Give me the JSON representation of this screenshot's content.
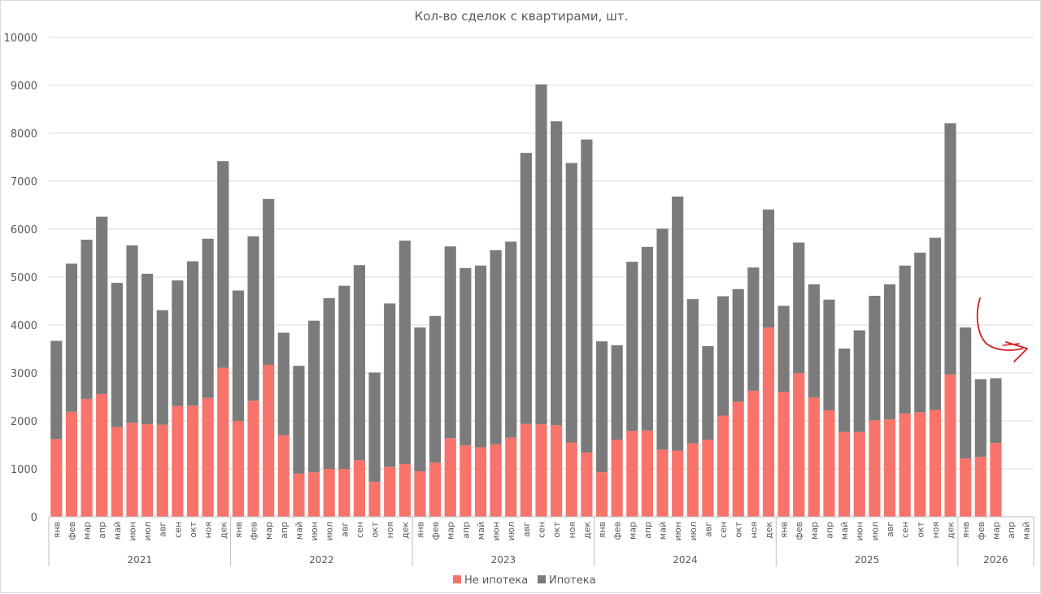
{
  "chart_data": {
    "type": "bar",
    "stacked": true,
    "title": "Кол-во сделок с квартирами, шт.",
    "xlabel": "",
    "ylabel": "",
    "ylim": [
      0,
      10000
    ],
    "yticks": [
      0,
      1000,
      2000,
      3000,
      4000,
      5000,
      6000,
      7000,
      8000,
      9000,
      10000
    ],
    "grid": true,
    "legend_position": "bottom",
    "categories": [
      "янв",
      "фев",
      "мар",
      "апр",
      "май",
      "июн",
      "июл",
      "авг",
      "сен",
      "окт",
      "ноя",
      "дек",
      "янв",
      "фев",
      "мар",
      "апр",
      "май",
      "июн",
      "июл",
      "авг",
      "сен",
      "окт",
      "ноя",
      "дек",
      "янв",
      "фев",
      "мар",
      "апр",
      "май",
      "июн",
      "июл",
      "авг",
      "сен",
      "окт",
      "ноя",
      "дек",
      "янв",
      "фев",
      "мар",
      "апр",
      "май",
      "июн",
      "июл",
      "авг",
      "сен",
      "окт",
      "ноя",
      "дек",
      "янв",
      "фев",
      "мар",
      "апр",
      "май",
      "июн",
      "июл",
      "авг",
      "сен",
      "окт",
      "ноя",
      "дек",
      "янв",
      "фев",
      "мар",
      "апр",
      "май"
    ],
    "years": [
      {
        "label": "2021",
        "start": 0,
        "count": 12
      },
      {
        "label": "2022",
        "start": 12,
        "count": 12
      },
      {
        "label": "2023",
        "start": 24,
        "count": 12
      },
      {
        "label": "2024",
        "start": 36,
        "count": 12
      },
      {
        "label": "2025",
        "start": 48,
        "count": 12
      },
      {
        "label": "2026",
        "start": 60,
        "count": 5
      }
    ],
    "series": [
      {
        "name": "Не ипотека",
        "color": "#f8736a",
        "values": [
          1620,
          2190,
          2460,
          2560,
          1870,
          1960,
          1930,
          1920,
          2310,
          2320,
          2480,
          3110,
          2000,
          2420,
          3170,
          1700,
          900,
          930,
          1000,
          1000,
          1180,
          730,
          1040,
          1100,
          950,
          1130,
          1640,
          1490,
          1450,
          1510,
          1650,
          1940,
          1930,
          1910,
          1550,
          1340,
          930,
          1610,
          1790,
          1800,
          1400,
          1380,
          1530,
          1610,
          2110,
          2400,
          2630,
          3950,
          2610,
          3000,
          2490,
          2220,
          1770,
          1770,
          2010,
          2030,
          2150,
          2180,
          2230,
          2970,
          1220,
          1250,
          1540,
          null,
          null
        ]
      },
      {
        "name": "Ипотека",
        "color": "#7b7b7b",
        "values": [
          2050,
          3090,
          3320,
          3700,
          3010,
          3700,
          3140,
          2390,
          2620,
          3010,
          3320,
          4310,
          2720,
          3430,
          3460,
          2140,
          2250,
          3160,
          3560,
          3820,
          4070,
          2280,
          3410,
          4660,
          3000,
          3060,
          4000,
          3700,
          3790,
          4050,
          4090,
          5650,
          7090,
          6340,
          5830,
          6530,
          2730,
          1970,
          3530,
          3830,
          4610,
          5300,
          3010,
          1950,
          2490,
          2350,
          2570,
          2460,
          1790,
          2720,
          2360,
          2310,
          1740,
          2120,
          2600,
          2820,
          3090,
          3330,
          3590,
          5240,
          2730,
          1620,
          1350,
          null,
          null
        ]
      }
    ],
    "annotation": "red hand-drawn arrow pointing back toward the 2026 bars"
  }
}
